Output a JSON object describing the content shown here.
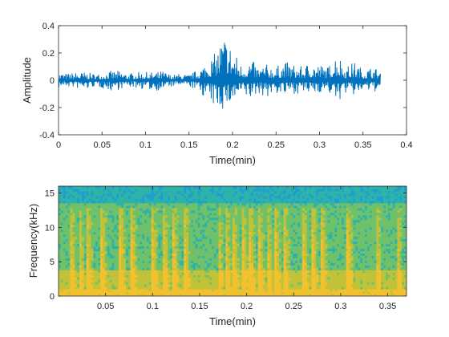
{
  "chart_data": [
    {
      "type": "line",
      "xlabel": "Time(min)",
      "ylabel": "Amplitude",
      "xlim": [
        0,
        0.4
      ],
      "ylim": [
        -0.4,
        0.4
      ],
      "xticks": [
        "0",
        "0.05",
        "0.1",
        "0.15",
        "0.2",
        "0.25",
        "0.3",
        "0.35",
        "0.4"
      ],
      "yticks": [
        "0.4",
        "0.2",
        "0",
        "-0.2",
        "-0.4"
      ],
      "series": [
        {
          "color": "#0072BD",
          "x": [
            0.0,
            0.01,
            0.02,
            0.03,
            0.04,
            0.05,
            0.06,
            0.07,
            0.08,
            0.09,
            0.1,
            0.11,
            0.12,
            0.13,
            0.14,
            0.15,
            0.16,
            0.17,
            0.18,
            0.19,
            0.2,
            0.21,
            0.22,
            0.23,
            0.24,
            0.25,
            0.26,
            0.27,
            0.28,
            0.29,
            0.3,
            0.31,
            0.32,
            0.33,
            0.34,
            0.35,
            0.36,
            0.37
          ],
          "max": [
            0.06,
            0.05,
            0.06,
            0.06,
            0.05,
            0.05,
            0.07,
            0.07,
            0.05,
            0.06,
            0.06,
            0.06,
            0.07,
            0.04,
            0.05,
            0.04,
            0.08,
            0.14,
            0.2,
            0.36,
            0.24,
            0.12,
            0.16,
            0.1,
            0.12,
            0.1,
            0.14,
            0.12,
            0.1,
            0.14,
            0.12,
            0.1,
            0.22,
            0.1,
            0.14,
            0.08,
            0.1,
            0.08
          ],
          "min": [
            -0.06,
            -0.05,
            -0.06,
            -0.08,
            -0.05,
            -0.06,
            -0.08,
            -0.07,
            -0.05,
            -0.06,
            -0.07,
            -0.08,
            -0.07,
            -0.05,
            -0.04,
            -0.05,
            -0.08,
            -0.14,
            -0.21,
            -0.22,
            -0.18,
            -0.12,
            -0.15,
            -0.1,
            -0.13,
            -0.1,
            -0.12,
            -0.1,
            -0.1,
            -0.11,
            -0.09,
            -0.09,
            -0.17,
            -0.1,
            -0.12,
            -0.08,
            -0.09,
            -0.08
          ]
        }
      ]
    },
    {
      "type": "heatmap",
      "xlabel": "Time(min)",
      "ylabel": "Frequency(kHz)",
      "xlim": [
        0,
        0.37
      ],
      "ylim": [
        0,
        16
      ],
      "xticks": [
        "0.05",
        "0.1",
        "0.15",
        "0.2",
        "0.25",
        "0.3",
        "0.35"
      ],
      "yticks": [
        "15",
        "10",
        "5",
        "0"
      ],
      "colormap": [
        "#1f9fd1",
        "#2fb3a8",
        "#6fc16a",
        "#c2c23a",
        "#f2c12e"
      ],
      "band_onsets": [
        0.013,
        0.022,
        0.031,
        0.046,
        0.066,
        0.078,
        0.1,
        0.112,
        0.122,
        0.134,
        0.17,
        0.178,
        0.186,
        0.196,
        0.204,
        0.213,
        0.222,
        0.231,
        0.24,
        0.26,
        0.27,
        0.28,
        0.308,
        0.338,
        0.36
      ]
    }
  ]
}
